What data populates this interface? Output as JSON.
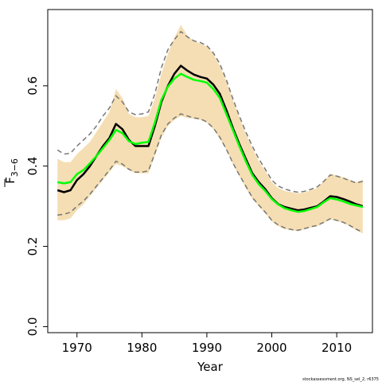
{
  "chart_data": {
    "type": "line",
    "xlabel": "Year",
    "ylabel": "F",
    "ylabel_sub": "3−6",
    "xlim": [
      1965.5,
      2015.5
    ],
    "ylim": [
      -0.015,
      0.79
    ],
    "xticks": [
      1970,
      1980,
      1990,
      2000,
      2010
    ],
    "yticks": [
      0.0,
      0.2,
      0.4,
      0.6
    ],
    "ytick_labels": [
      "0.0",
      "0.2",
      "0.4",
      "0.6"
    ],
    "footnote": "stockassessment.org, NS_sel_2, r6375",
    "x": [
      1967,
      1968,
      1969,
      1970,
      1971,
      1972,
      1973,
      1974,
      1975,
      1976,
      1977,
      1978,
      1979,
      1980,
      1981,
      1982,
      1983,
      1984,
      1985,
      1986,
      1987,
      1988,
      1989,
      1990,
      1991,
      1992,
      1993,
      1994,
      1995,
      1996,
      1997,
      1998,
      1999,
      2000,
      2001,
      2002,
      2003,
      2004,
      2005,
      2006,
      2007,
      2008,
      2009,
      2010,
      2011,
      2012,
      2013,
      2014
    ],
    "series": [
      {
        "color": "#000000",
        "style": "solid",
        "values": [
          0.34,
          0.335,
          0.34,
          0.365,
          0.38,
          0.4,
          0.425,
          0.45,
          0.47,
          0.505,
          0.492,
          0.465,
          0.45,
          0.45,
          0.45,
          0.5,
          0.56,
          0.6,
          0.63,
          0.65,
          0.638,
          0.628,
          0.622,
          0.618,
          0.603,
          0.58,
          0.54,
          0.495,
          0.455,
          0.418,
          0.382,
          0.36,
          0.342,
          0.32,
          0.305,
          0.298,
          0.294,
          0.29,
          0.292,
          0.296,
          0.3,
          0.312,
          0.325,
          0.323,
          0.318,
          0.312,
          0.305,
          0.3
        ]
      },
      {
        "color": "#00ff00",
        "style": "solid",
        "values": [
          0.36,
          0.357,
          0.36,
          0.38,
          0.39,
          0.407,
          0.425,
          0.445,
          0.465,
          0.49,
          0.482,
          0.462,
          0.455,
          0.458,
          0.46,
          0.508,
          0.565,
          0.598,
          0.618,
          0.63,
          0.622,
          0.615,
          0.612,
          0.608,
          0.592,
          0.57,
          0.53,
          0.49,
          0.45,
          0.412,
          0.378,
          0.355,
          0.338,
          0.318,
          0.304,
          0.295,
          0.29,
          0.286,
          0.288,
          0.293,
          0.298,
          0.31,
          0.32,
          0.317,
          0.312,
          0.306,
          0.302,
          0.298
        ]
      }
    ],
    "interval": {
      "color": "#f5deb3",
      "upper": [
        0.418,
        0.41,
        0.41,
        0.43,
        0.445,
        0.46,
        0.485,
        0.51,
        0.535,
        0.592,
        0.57,
        0.53,
        0.522,
        0.522,
        0.525,
        0.568,
        0.63,
        0.68,
        0.72,
        0.752,
        0.725,
        0.712,
        0.705,
        0.698,
        0.68,
        0.65,
        0.612,
        0.565,
        0.522,
        0.48,
        0.445,
        0.412,
        0.388,
        0.36,
        0.345,
        0.338,
        0.335,
        0.332,
        0.334,
        0.34,
        0.345,
        0.362,
        0.38,
        0.377,
        0.372,
        0.366,
        0.36,
        0.366
      ],
      "lower": [
        0.265,
        0.265,
        0.27,
        0.29,
        0.305,
        0.325,
        0.345,
        0.365,
        0.385,
        0.405,
        0.4,
        0.39,
        0.382,
        0.382,
        0.382,
        0.425,
        0.47,
        0.5,
        0.515,
        0.525,
        0.52,
        0.518,
        0.515,
        0.508,
        0.492,
        0.468,
        0.44,
        0.405,
        0.375,
        0.345,
        0.318,
        0.3,
        0.282,
        0.262,
        0.25,
        0.243,
        0.24,
        0.238,
        0.242,
        0.247,
        0.25,
        0.258,
        0.267,
        0.263,
        0.258,
        0.25,
        0.24,
        0.232
      ]
    },
    "bounds": {
      "color": "#777777",
      "style": "dashed",
      "upper": [
        0.44,
        0.43,
        0.432,
        0.45,
        0.465,
        0.48,
        0.5,
        0.525,
        0.545,
        0.575,
        0.56,
        0.535,
        0.528,
        0.53,
        0.535,
        0.58,
        0.645,
        0.69,
        0.715,
        0.735,
        0.722,
        0.712,
        0.708,
        0.7,
        0.682,
        0.655,
        0.615,
        0.568,
        0.525,
        0.485,
        0.45,
        0.418,
        0.392,
        0.365,
        0.35,
        0.343,
        0.338,
        0.335,
        0.337,
        0.342,
        0.348,
        0.362,
        0.378,
        0.375,
        0.37,
        0.364,
        0.358,
        0.362
      ],
      "lower": [
        0.278,
        0.28,
        0.285,
        0.3,
        0.313,
        0.33,
        0.35,
        0.37,
        0.39,
        0.412,
        0.405,
        0.392,
        0.385,
        0.385,
        0.388,
        0.432,
        0.478,
        0.505,
        0.52,
        0.53,
        0.525,
        0.52,
        0.518,
        0.51,
        0.495,
        0.472,
        0.442,
        0.408,
        0.378,
        0.35,
        0.322,
        0.303,
        0.285,
        0.265,
        0.253,
        0.246,
        0.242,
        0.24,
        0.244,
        0.249,
        0.252,
        0.26,
        0.269,
        0.265,
        0.26,
        0.252,
        0.243,
        0.235
      ]
    }
  }
}
